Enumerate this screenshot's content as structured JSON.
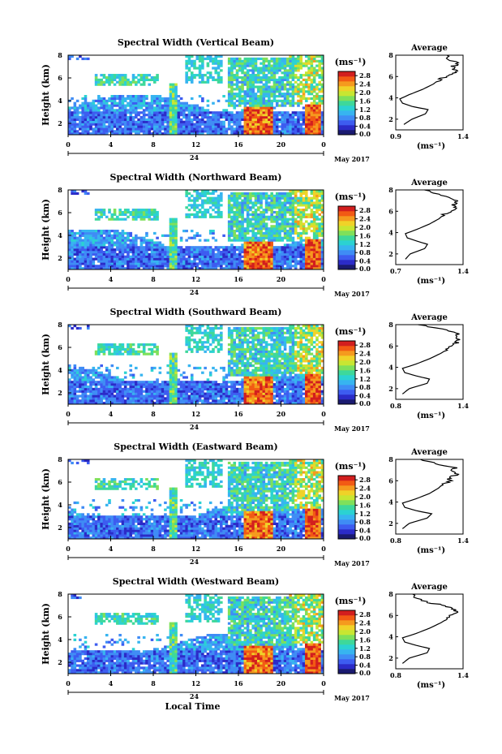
{
  "colors": {
    "scale": [
      "#1a1a70",
      "#2b2bc8",
      "#3d5cf0",
      "#3f8cf5",
      "#37b4f0",
      "#2bd2d2",
      "#3ed89a",
      "#7fe05a",
      "#c8e632",
      "#f0d228",
      "#f59a1e",
      "#f25a14",
      "#d21e1e"
    ]
  },
  "chart_data": [
    {
      "type": "heatmap",
      "title": "Spectral Width (Vertical Beam)",
      "ylabel": "Height (km)",
      "xticks": [
        "0",
        "4",
        "8",
        "12",
        "16",
        "20",
        "0"
      ],
      "xlim": [
        0,
        24
      ],
      "ylim": [
        1,
        8
      ],
      "yticks": [
        "2",
        "4",
        "6",
        "8"
      ],
      "date_day": "24",
      "date_month": "May 2017",
      "colorbar": {
        "unit": "(ms⁻¹)",
        "ticks": [
          "2.8",
          "2.4",
          "2.0",
          "1.6",
          "1.2",
          "0.8",
          "0.4",
          "0.0"
        ],
        "range": [
          0,
          3.0
        ]
      },
      "average": {
        "title": "Average",
        "unit": "(ms⁻¹)",
        "xticks": [
          "0.9",
          "1.4"
        ],
        "xlim": [
          0.9,
          1.4
        ],
        "yticks": [
          "2",
          "4",
          "6",
          "8"
        ],
        "profile": [
          [
            1.5,
            0.96
          ],
          [
            2.0,
            1.02
          ],
          [
            2.5,
            1.12
          ],
          [
            2.9,
            1.14
          ],
          [
            3.2,
            1.02
          ],
          [
            3.5,
            0.95
          ],
          [
            3.9,
            0.93
          ],
          [
            4.3,
            1.0
          ],
          [
            4.8,
            1.1
          ],
          [
            5.3,
            1.18
          ],
          [
            5.7,
            1.22
          ],
          [
            6.0,
            1.27
          ],
          [
            6.3,
            1.33
          ],
          [
            6.6,
            1.35
          ],
          [
            6.9,
            1.32
          ],
          [
            7.2,
            1.36
          ],
          [
            7.6,
            1.3
          ],
          [
            8.0,
            1.28
          ]
        ]
      }
    },
    {
      "type": "heatmap",
      "title": "Spectral Width (Northward Beam)",
      "ylabel": "Height (km)",
      "xticks": [
        "0",
        "4",
        "8",
        "12",
        "16",
        "20",
        "0"
      ],
      "xlim": [
        0,
        24
      ],
      "ylim": [
        1,
        8
      ],
      "yticks": [
        "2",
        "4",
        "6",
        "8"
      ],
      "date_day": "24",
      "date_month": "May 2017",
      "colorbar": {
        "unit": "(ms⁻¹)",
        "ticks": [
          "2.8",
          "2.4",
          "2.0",
          "1.6",
          "1.2",
          "0.8",
          "0.4",
          "0.0"
        ],
        "range": [
          0,
          3.0
        ]
      },
      "average": {
        "title": "Average",
        "unit": "(ms⁻¹)",
        "xticks": [
          "0.7",
          "1.4"
        ],
        "xlim": [
          0.7,
          1.4
        ],
        "yticks": [
          "2",
          "4",
          "6",
          "8"
        ],
        "profile": [
          [
            1.5,
            0.8
          ],
          [
            2.0,
            0.85
          ],
          [
            2.5,
            1.0
          ],
          [
            2.9,
            1.03
          ],
          [
            3.2,
            0.92
          ],
          [
            3.5,
            0.82
          ],
          [
            3.9,
            0.8
          ],
          [
            4.3,
            0.92
          ],
          [
            4.8,
            1.05
          ],
          [
            5.3,
            1.15
          ],
          [
            5.7,
            1.2
          ],
          [
            6.0,
            1.28
          ],
          [
            6.3,
            1.32
          ],
          [
            6.6,
            1.3
          ],
          [
            6.9,
            1.34
          ],
          [
            7.2,
            1.28
          ],
          [
            7.6,
            1.15
          ],
          [
            8.0,
            1.0
          ]
        ]
      }
    },
    {
      "type": "heatmap",
      "title": "Spectral Width (Southward Beam)",
      "ylabel": "Height (km)",
      "xticks": [
        "0",
        "4",
        "8",
        "12",
        "16",
        "20",
        "0"
      ],
      "xlim": [
        0,
        24
      ],
      "ylim": [
        1,
        8
      ],
      "yticks": [
        "2",
        "4",
        "6",
        "8"
      ],
      "date_day": "24",
      "date_month": "May 2017",
      "colorbar": {
        "unit": "(ms⁻¹)",
        "ticks": [
          "2.8",
          "2.4",
          "2.0",
          "1.6",
          "1.2",
          "0.8",
          "0.4",
          "0.0"
        ],
        "range": [
          0,
          3.0
        ]
      },
      "average": {
        "title": "Average",
        "unit": "(ms⁻¹)",
        "xticks": [
          "0.8",
          "1.4"
        ],
        "xlim": [
          0.8,
          1.4
        ],
        "yticks": [
          "2",
          "4",
          "6",
          "8"
        ],
        "profile": [
          [
            1.5,
            0.86
          ],
          [
            2.0,
            0.92
          ],
          [
            2.5,
            1.08
          ],
          [
            2.9,
            1.1
          ],
          [
            3.2,
            0.98
          ],
          [
            3.5,
            0.88
          ],
          [
            3.9,
            0.86
          ],
          [
            4.3,
            0.98
          ],
          [
            4.8,
            1.1
          ],
          [
            5.3,
            1.2
          ],
          [
            5.7,
            1.26
          ],
          [
            6.0,
            1.3
          ],
          [
            6.3,
            1.34
          ],
          [
            6.6,
            1.36
          ],
          [
            6.9,
            1.33
          ],
          [
            7.2,
            1.36
          ],
          [
            7.6,
            1.2
          ],
          [
            8.0,
            1.0
          ]
        ]
      }
    },
    {
      "type": "heatmap",
      "title": "Spectral Width (Eastward Beam)",
      "ylabel": "Height (km)",
      "xticks": [
        "0",
        "4",
        "8",
        "12",
        "16",
        "20",
        "0"
      ],
      "xlim": [
        0,
        24
      ],
      "ylim": [
        1,
        8
      ],
      "yticks": [
        "2",
        "4",
        "6",
        "8"
      ],
      "date_day": "24",
      "date_month": "May 2017",
      "colorbar": {
        "unit": "(ms⁻¹)",
        "ticks": [
          "2.8",
          "2.4",
          "2.0",
          "1.6",
          "1.2",
          "0.8",
          "0.4",
          "0.0"
        ],
        "range": [
          0,
          3.0
        ]
      },
      "average": {
        "title": "Average",
        "unit": "(ms⁻¹)",
        "xticks": [
          "0.8",
          "1.4"
        ],
        "xlim": [
          0.8,
          1.4
        ],
        "yticks": [
          "2",
          "4",
          "6",
          "8"
        ],
        "profile": [
          [
            1.5,
            0.86
          ],
          [
            2.0,
            0.92
          ],
          [
            2.5,
            1.08
          ],
          [
            2.9,
            1.12
          ],
          [
            3.2,
            0.98
          ],
          [
            3.5,
            0.88
          ],
          [
            3.9,
            0.86
          ],
          [
            4.3,
            0.98
          ],
          [
            4.8,
            1.1
          ],
          [
            5.3,
            1.18
          ],
          [
            5.7,
            1.22
          ],
          [
            6.0,
            1.3
          ],
          [
            6.3,
            1.26
          ],
          [
            6.6,
            1.35
          ],
          [
            6.9,
            1.28
          ],
          [
            7.2,
            1.34
          ],
          [
            7.6,
            1.15
          ],
          [
            8.0,
            1.02
          ]
        ]
      }
    },
    {
      "type": "heatmap",
      "title": "Spectral Width (Westward Beam)",
      "ylabel": "Height (km)",
      "xlabel": "Local Time",
      "xticks": [
        "0",
        "4",
        "8",
        "12",
        "16",
        "20",
        "0"
      ],
      "xlim": [
        0,
        24
      ],
      "ylim": [
        1,
        8
      ],
      "yticks": [
        "2",
        "4",
        "6",
        "8"
      ],
      "date_day": "24",
      "date_month": "May 2017",
      "colorbar": {
        "unit": "(ms⁻¹)",
        "ticks": [
          "2.8",
          "2.4",
          "2.0",
          "1.6",
          "1.2",
          "0.8",
          "0.4",
          "0.0"
        ],
        "range": [
          0,
          3.0
        ]
      },
      "average": {
        "title": "Average",
        "unit": "(ms⁻¹)",
        "xticks": [
          "0.8",
          "1.4"
        ],
        "xlim": [
          0.8,
          1.4
        ],
        "yticks": [
          "2",
          "4",
          "6",
          "8"
        ],
        "profile": [
          [
            1.5,
            0.86
          ],
          [
            2.0,
            0.92
          ],
          [
            2.5,
            1.08
          ],
          [
            2.9,
            1.1
          ],
          [
            3.2,
            0.98
          ],
          [
            3.5,
            0.88
          ],
          [
            3.9,
            0.86
          ],
          [
            4.3,
            0.98
          ],
          [
            4.8,
            1.1
          ],
          [
            5.3,
            1.2
          ],
          [
            5.7,
            1.26
          ],
          [
            6.0,
            1.3
          ],
          [
            6.3,
            1.34
          ],
          [
            6.6,
            1.32
          ],
          [
            6.9,
            1.25
          ],
          [
            7.2,
            1.1
          ],
          [
            7.6,
            0.98
          ],
          [
            8.0,
            0.95
          ]
        ]
      }
    }
  ]
}
